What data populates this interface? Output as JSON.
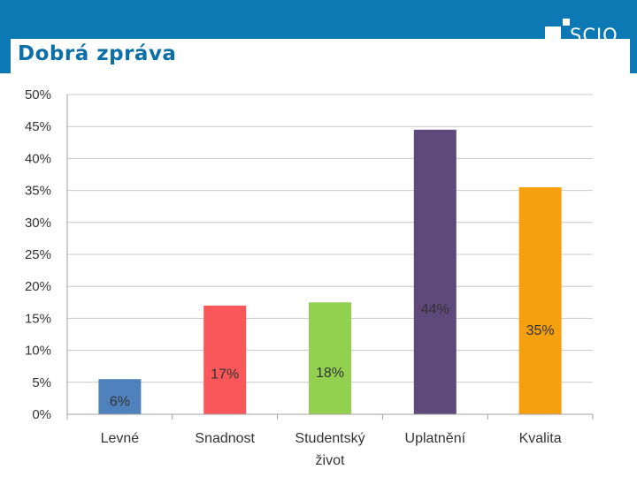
{
  "header": {
    "title": "Dobrá zpráva",
    "logo_text": "SCIO",
    "color": "#0c79b4"
  },
  "chart_data": {
    "type": "bar",
    "title": "",
    "xlabel": "",
    "ylabel": "",
    "ylim": [
      0,
      50
    ],
    "yticks": [
      "0%",
      "5%",
      "10%",
      "15%",
      "20%",
      "25%",
      "30%",
      "35%",
      "40%",
      "45%",
      "50%"
    ],
    "grid": true,
    "categories": [
      [
        "Levné"
      ],
      [
        "Snadnost"
      ],
      [
        "Studentský",
        "život"
      ],
      [
        "Uplatnění"
      ],
      [
        "Kvalita"
      ]
    ],
    "values": [
      5.5,
      17,
      17.5,
      44.5,
      35.5
    ],
    "data_labels": [
      "6%",
      "17%",
      "18%",
      "44%",
      "35%"
    ],
    "colors": [
      "#4f81bd",
      "#f9575a",
      "#92d050",
      "#5f497a",
      "#f5a10f"
    ]
  }
}
